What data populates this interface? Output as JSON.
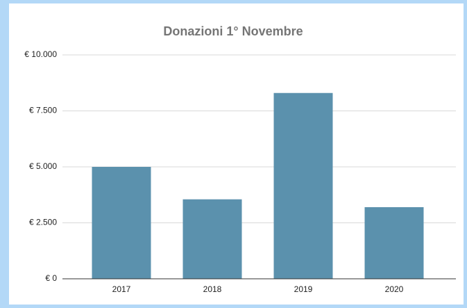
{
  "chart_data": {
    "type": "bar",
    "title": "Donazioni 1° Novembre",
    "categories": [
      "2017",
      "2018",
      "2019",
      "2020"
    ],
    "values": [
      5000,
      3550,
      8300,
      3200
    ],
    "color": "#5b91ad",
    "ylim": [
      0,
      10000
    ],
    "yticks": [
      {
        "value": 0,
        "label": "€ 0"
      },
      {
        "value": 2500,
        "label": "€ 2.500"
      },
      {
        "value": 5000,
        "label": "€ 5.000"
      },
      {
        "value": 7500,
        "label": "€ 7.500"
      },
      {
        "value": 10000,
        "label": "€ 10.000"
      }
    ],
    "grid": true
  }
}
